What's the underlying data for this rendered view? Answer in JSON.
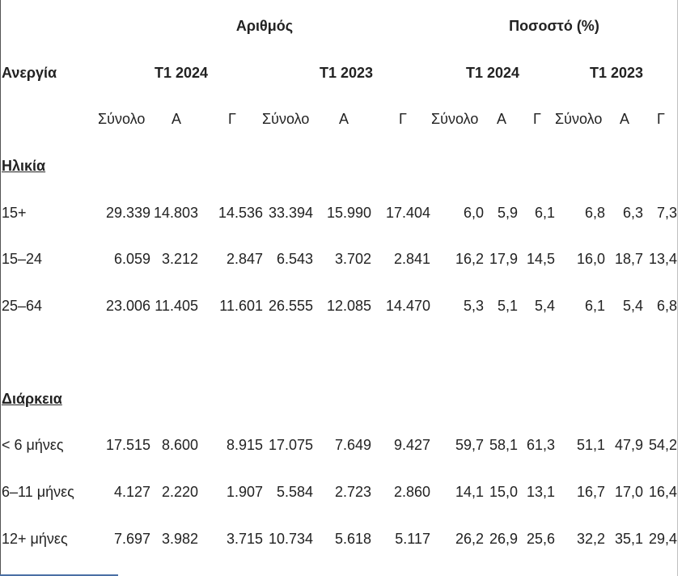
{
  "header": {
    "number_group": "Αριθμός",
    "percent_group": "Ποσοστό (%)",
    "row_header": "Ανεργία",
    "periods": [
      "Τ1 2024",
      "Τ1 2023",
      "Τ1 2024",
      "Τ1 2023"
    ],
    "subcols": [
      "Σύνολο",
      "Α",
      "Γ",
      "Σύνολο",
      "Α",
      "Γ",
      "Σύνολο",
      "Α",
      "Γ",
      "Σύνολο",
      "Α",
      "Γ"
    ]
  },
  "sections": [
    {
      "title": "Ηλικία",
      "rows": [
        {
          "label": "15+",
          "values": [
            "29.339",
            "14.803",
            "14.536",
            "33.394",
            "15.990",
            "17.404",
            "6,0",
            "5,9",
            "6,1",
            "6,8",
            "6,3",
            "7,3"
          ]
        },
        {
          "label": "15–24",
          "values": [
            "6.059",
            "3.212",
            "2.847",
            "6.543",
            "3.702",
            "2.841",
            "16,2",
            "17,9",
            "14,5",
            "16,0",
            "18,7",
            "13,4"
          ]
        },
        {
          "label": "25–64",
          "values": [
            "23.006",
            "11.405",
            "11.601",
            "26.555",
            "12.085",
            "14.470",
            "5,3",
            "5,1",
            "5,4",
            "6,1",
            "5,4",
            "6,8"
          ]
        }
      ]
    },
    {
      "title": "Διάρκεια",
      "rows": [
        {
          "label": "< 6 μήνες",
          "values": [
            "17.515",
            "8.600",
            "8.915",
            "17.075",
            "7.649",
            "9.427",
            "59,7",
            "58,1",
            "61,3",
            "51,1",
            "47,9",
            "54,2"
          ]
        },
        {
          "label": "6–11 μήνες",
          "values": [
            "4.127",
            "2.220",
            "1.907",
            "5.584",
            "2.723",
            "2.860",
            "14,1",
            "15,0",
            "13,1",
            "16,7",
            "17,0",
            "16,4"
          ]
        },
        {
          "label": "12+ μήνες",
          "values": [
            "7.697",
            "3.982",
            "3.715",
            "10.734",
            "5.618",
            "5.117",
            "26,2",
            "26,9",
            "25,6",
            "32,2",
            "35,1",
            "29,4"
          ]
        }
      ]
    }
  ]
}
